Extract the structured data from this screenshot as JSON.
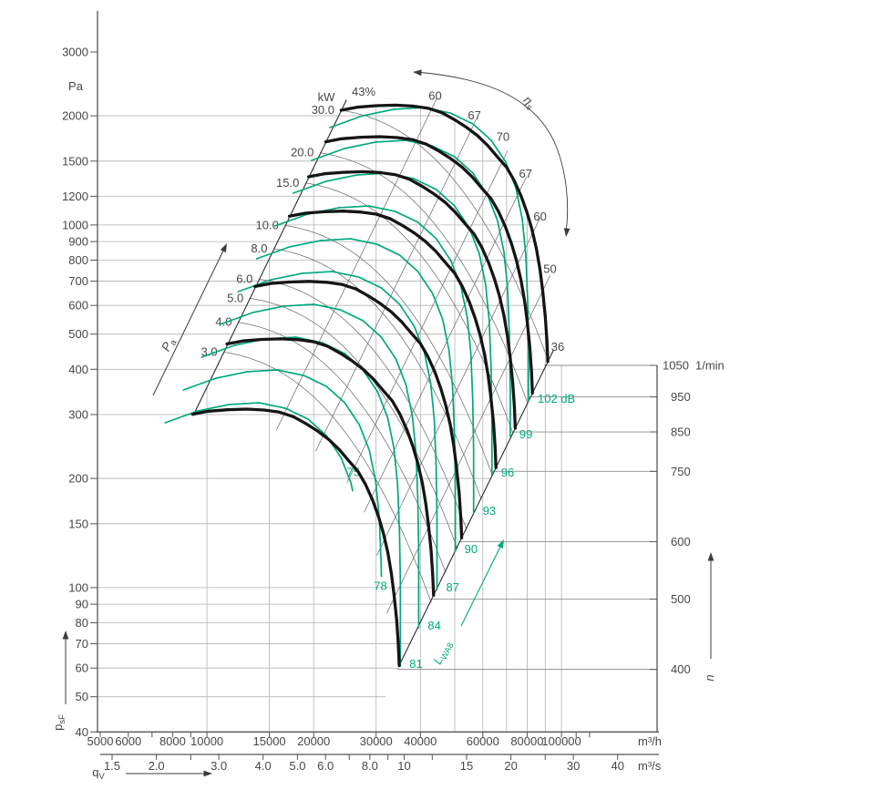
{
  "chart_data": {
    "type": "line",
    "description": "Fan performance chart: pressure vs volume flow, log-log, with speed curves, power lines, efficiency lines and sound power contours",
    "y_axis": {
      "unit": "Pa",
      "scale": "log",
      "ticks": [
        3000,
        2000,
        1500,
        1200,
        1000,
        900,
        800,
        700,
        600,
        500,
        400,
        300,
        200,
        150,
        100,
        90,
        80,
        70,
        60,
        50,
        40
      ],
      "grid_ticks": [
        2000,
        1500,
        1200,
        1000,
        900,
        800,
        700,
        600,
        500,
        400,
        300,
        200,
        150,
        100,
        90,
        80,
        70,
        60,
        50
      ],
      "arrow_label": {
        "base": "p",
        "sub": "sF"
      }
    },
    "x_axis_m3h": {
      "unit": "m³/h",
      "scale": "log",
      "label_ticks": [
        5000,
        6000,
        8000,
        10000,
        15000,
        20000,
        30000,
        40000,
        60000,
        80000,
        100000
      ],
      "minor_ticks": [
        7000,
        9000,
        110000,
        120000
      ],
      "grid_ticks": [
        10000,
        15000,
        20000,
        30000,
        40000,
        50000,
        60000,
        70000,
        80000,
        90000,
        100000
      ]
    },
    "x_axis_m3s": {
      "unit": "m³/s",
      "label_ticks": [
        "1.5",
        "2.0",
        "3.0",
        "4.0",
        "5.0",
        "6.0",
        "8.0",
        "10",
        "15",
        "20",
        "30",
        "40"
      ],
      "label_values": [
        1.5,
        2,
        3,
        4,
        5,
        6,
        8,
        10,
        15,
        20,
        30,
        40
      ],
      "minor_values": [
        2.5,
        7,
        9,
        12,
        25
      ],
      "arrow_label": {
        "base": "q",
        "sub": "V"
      }
    },
    "speed_axis": {
      "unit": "1/min",
      "ticks": [
        1050,
        950,
        850,
        750,
        600,
        500,
        400
      ],
      "arrow_label": "n"
    },
    "fan_curves": {
      "speeds_rpm": [
        1050,
        950,
        850,
        750,
        600,
        500,
        400
      ],
      "curve_1050_points": [
        [
          23900,
          2072
        ],
        [
          26500,
          2112
        ],
        [
          30000,
          2132
        ],
        [
          34000,
          2140
        ],
        [
          38000,
          2128
        ],
        [
          42000,
          2100
        ],
        [
          46000,
          2040
        ],
        [
          50000,
          1950
        ],
        [
          54000,
          1858
        ],
        [
          58000,
          1762
        ],
        [
          62000,
          1655
        ],
        [
          66000,
          1540
        ],
        [
          70000,
          1442
        ],
        [
          73500,
          1328
        ],
        [
          77000,
          1200
        ],
        [
          80000,
          1080
        ],
        [
          82500,
          975
        ],
        [
          85000,
          860
        ],
        [
          87000,
          752
        ],
        [
          88500,
          658
        ],
        [
          90000,
          560
        ],
        [
          91000,
          478
        ],
        [
          91500,
          420
        ]
      ]
    },
    "power_lines": {
      "header": "kW",
      "values": [
        30,
        20,
        15,
        10,
        8,
        6,
        5,
        4,
        3
      ],
      "labels": [
        "30.0",
        "20.0",
        "15.0",
        "10.0",
        "8.0",
        "6.0",
        "5.0",
        "4.0",
        "3.0"
      ],
      "boundary_pressures_pa": [
        2072,
        1581,
        1305,
        997,
        860,
        709,
        628,
        539,
        446
      ]
    },
    "efficiency": {
      "symbol": {
        "base": "η",
        "sub": "s"
      },
      "boundary_left_label": "43%",
      "left_branch": [
        {
          "label": "60",
          "exit_flow_m3h": 43000
        },
        {
          "label": "67",
          "exit_flow_m3h": 55500
        },
        {
          "label": "70",
          "exit_flow_m3h": 68000
        }
      ],
      "right_branch": [
        {
          "label": "67",
          "exit_flow_m3h": 76000
        },
        {
          "label": "60",
          "exit_flow_m3h": 83000
        },
        {
          "label": "50",
          "exit_flow_m3h": 88500
        }
      ],
      "boundary_right_label": "36"
    },
    "noise": {
      "symbol": {
        "base": "L",
        "sub": "WA8"
      },
      "unit": "dB",
      "values": [
        75,
        78,
        81,
        84,
        87,
        90,
        93,
        96,
        99,
        102
      ],
      "top_label": "102 dB"
    },
    "shaft_power_arrow": {
      "base": "P",
      "sub": "a"
    },
    "colors": {
      "noise_green": "#00a87e",
      "curve_black": "#151515",
      "contour_gray": "#6e6e6e",
      "boundary": "#2b2b2b",
      "grid": "#b3b3b3",
      "axis": "#555555",
      "text": "#474747"
    }
  }
}
